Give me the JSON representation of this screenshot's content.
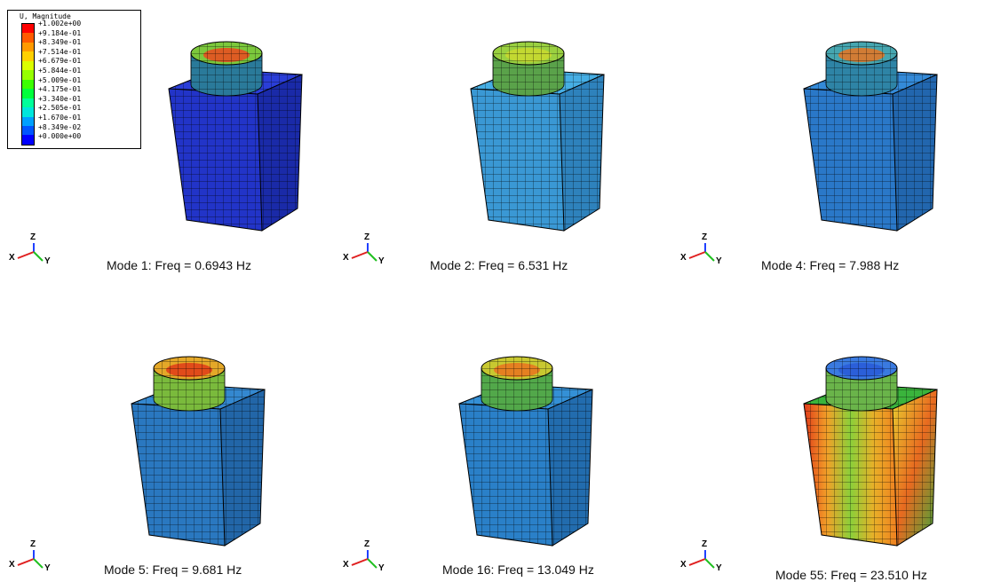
{
  "legend": {
    "title": "U, Magnitude",
    "levels": [
      "+1.002e+00",
      "+9.184e-01",
      "+8.349e-01",
      "+7.514e-01",
      "+6.679e-01",
      "+5.844e-01",
      "+5.009e-01",
      "+4.175e-01",
      "+3.340e-01",
      "+2.505e-01",
      "+1.670e-01",
      "+8.349e-02",
      "+0.000e+00"
    ],
    "colors": [
      "#ff0000",
      "#ff5a00",
      "#ff9a00",
      "#ffd000",
      "#dcff00",
      "#96ff00",
      "#3cff00",
      "#00ff3c",
      "#00ff9a",
      "#00e6dc",
      "#00a0ff",
      "#0055ff",
      "#0000ff"
    ]
  },
  "triad": {
    "z": "Z",
    "x": "X",
    "y": "Y"
  },
  "modes": [
    {
      "caption": "Mode  1:  Freq =  0.6943 Hz",
      "body": "#2234c8",
      "top": "#2a3ed8",
      "side": "#1a2aa8",
      "rim": "#2a7a9a",
      "inner": "#7cc83c",
      "center": "#e85020"
    },
    {
      "caption": "Mode  2:  Freq = 6.531 Hz",
      "body": "#3a98d4",
      "top": "#46aee4",
      "side": "#2e82bc",
      "rim": "#5aa24a",
      "inner": "#9ad040",
      "center": "#c8d830"
    },
    {
      "caption": "Mode  4:  Freq = 7.988 Hz",
      "body": "#2a78c8",
      "top": "#348ad8",
      "side": "#2266ae",
      "rim": "#2e84a6",
      "inner": "#46a6b0",
      "center": "#e07828"
    },
    {
      "caption": "Mode  5: Freq = 9.681 Hz",
      "body": "#2a78c0",
      "top": "#3488d0",
      "side": "#2266a8",
      "rim": "#7aba3c",
      "inner": "#e4a828",
      "center": "#e04018"
    },
    {
      "caption": "Mode  16:  Freq = 13.049 Hz",
      "body": "#2a80c8",
      "top": "#3490d6",
      "side": "#226cae",
      "rim": "#52a84a",
      "inner": "#c8c830",
      "center": "#e87820"
    },
    {
      "caption": "Mode  55:  Freq = 23.510 Hz",
      "body": "#7ac83c",
      "top": "#3ab43c",
      "side": "#e04820",
      "rim": "#6ab44a",
      "inner": "#3a7ae0",
      "center": "#2a5cd8"
    }
  ]
}
